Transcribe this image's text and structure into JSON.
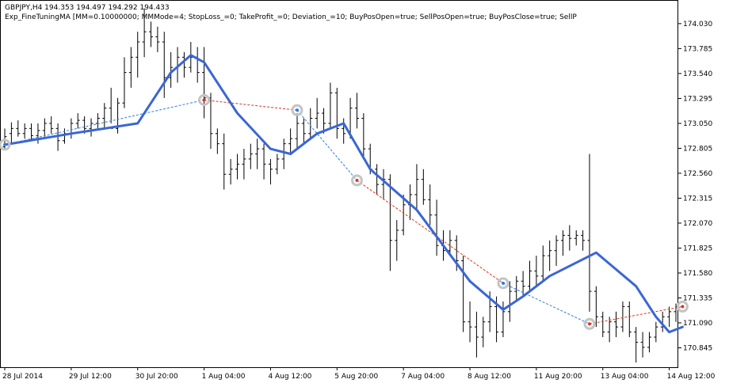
{
  "header": {
    "symbol_line": "GBPJPY,H4  194.353 194.497 194.292 194.433",
    "ea_line": "Exp_FineTuningMA [MM=0.10000000; MMMode=4; StopLoss_=0; TakeProfit_=0; Deviation_=10; BuyPosOpen=true; SellPosOpen=true; BuyPosClose=true; SellP"
  },
  "colors": {
    "background": "#ffffff",
    "bars": "#000000",
    "ma_line": "#3a66d6",
    "buy_trade_line": "#2a7de1",
    "sell_trade_line": "#e0341e",
    "marker_ring": "#c4c4c4"
  },
  "chart_data": {
    "type": "ohlc",
    "yticks": [
      174.03,
      173.785,
      173.54,
      173.295,
      173.05,
      172.805,
      172.56,
      172.315,
      172.07,
      171.825,
      171.58,
      171.335,
      171.09,
      170.845
    ],
    "ylim": [
      170.67,
      174.2
    ],
    "grid": false,
    "xticks": [
      {
        "i": 0,
        "label": "28 Jul 2014"
      },
      {
        "i": 10,
        "label": "29 Jul 12:00"
      },
      {
        "i": 20,
        "label": "30 Jul 20:00"
      },
      {
        "i": 30,
        "label": "1 Aug 04:00"
      },
      {
        "i": 40,
        "label": "4 Aug 12:00"
      },
      {
        "i": 50,
        "label": "5 Aug 20:00"
      },
      {
        "i": 60,
        "label": "7 Aug 04:00"
      },
      {
        "i": 70,
        "label": "8 Aug 12:00"
      },
      {
        "i": 80,
        "label": "11 Aug 20:00"
      },
      {
        "i": 90,
        "label": "13 Aug 04:00"
      },
      {
        "i": 100,
        "label": "14 Aug 12:00"
      }
    ],
    "series": [
      {
        "kind": "ohlc",
        "values": [
          [
            172.82,
            173.0,
            172.8,
            172.92
          ],
          [
            172.95,
            173.06,
            172.85,
            173.0
          ],
          [
            173.0,
            173.08,
            172.92,
            172.95
          ],
          [
            172.95,
            173.05,
            172.9,
            173.0
          ],
          [
            173.0,
            173.05,
            172.88,
            172.93
          ],
          [
            172.93,
            173.05,
            172.85,
            172.98
          ],
          [
            172.98,
            173.1,
            172.92,
            173.05
          ],
          [
            173.05,
            173.12,
            172.95,
            173.0
          ],
          [
            173.0,
            173.05,
            172.78,
            172.88
          ],
          [
            172.88,
            173.0,
            172.85,
            172.95
          ],
          [
            172.95,
            173.1,
            172.9,
            173.05
          ],
          [
            173.05,
            173.15,
            173.0,
            173.08
          ],
          [
            173.08,
            173.12,
            172.95,
            173.0
          ],
          [
            173.0,
            173.1,
            172.92,
            173.05
          ],
          [
            173.05,
            173.15,
            173.0,
            173.1
          ],
          [
            173.1,
            173.25,
            173.0,
            173.2
          ],
          [
            173.2,
            173.4,
            173.05,
            173.0
          ],
          [
            173.0,
            173.3,
            172.95,
            173.25
          ],
          [
            173.25,
            173.7,
            173.2,
            173.55
          ],
          [
            173.55,
            173.8,
            173.4,
            173.7
          ],
          [
            173.7,
            173.95,
            173.5,
            173.85
          ],
          [
            173.85,
            174.18,
            173.7,
            173.95
          ],
          [
            173.95,
            174.05,
            173.8,
            173.9
          ],
          [
            173.9,
            174.0,
            173.75,
            173.85
          ],
          [
            173.85,
            173.95,
            173.3,
            173.5
          ],
          [
            173.5,
            173.75,
            173.4,
            173.6
          ],
          [
            173.6,
            173.8,
            173.45,
            173.7
          ],
          [
            173.7,
            173.75,
            173.5,
            173.6
          ],
          [
            173.6,
            173.85,
            173.55,
            173.7
          ],
          [
            173.7,
            173.8,
            173.45,
            173.55
          ],
          [
            173.55,
            173.8,
            173.1,
            173.3
          ],
          [
            173.3,
            173.35,
            172.8,
            172.95
          ],
          [
            172.95,
            173.0,
            172.75,
            172.85
          ],
          [
            172.85,
            172.95,
            172.4,
            172.55
          ],
          [
            172.55,
            172.7,
            172.45,
            172.6
          ],
          [
            172.6,
            172.75,
            172.5,
            172.65
          ],
          [
            172.65,
            172.8,
            172.5,
            172.7
          ],
          [
            172.7,
            172.85,
            172.6,
            172.75
          ],
          [
            172.75,
            172.9,
            172.6,
            172.8
          ],
          [
            172.8,
            172.85,
            172.5,
            172.65
          ],
          [
            172.65,
            172.7,
            172.45,
            172.6
          ],
          [
            172.6,
            172.75,
            172.55,
            172.7
          ],
          [
            172.7,
            172.9,
            172.6,
            172.85
          ],
          [
            172.85,
            173.0,
            172.75,
            172.9
          ],
          [
            172.9,
            173.15,
            172.8,
            173.05
          ],
          [
            173.05,
            173.1,
            172.85,
            172.95
          ],
          [
            172.95,
            173.2,
            172.9,
            173.1
          ],
          [
            173.1,
            173.3,
            173.0,
            173.15
          ],
          [
            173.15,
            173.2,
            172.95,
            173.05
          ],
          [
            173.05,
            173.45,
            173.0,
            173.35
          ],
          [
            173.35,
            173.4,
            172.9,
            173.0
          ],
          [
            173.0,
            173.1,
            172.85,
            172.95
          ],
          [
            172.95,
            173.3,
            172.9,
            173.2
          ],
          [
            173.2,
            173.35,
            173.0,
            173.1
          ],
          [
            173.1,
            173.15,
            172.7,
            172.8
          ],
          [
            172.8,
            172.85,
            172.55,
            172.6
          ],
          [
            172.6,
            172.65,
            172.35,
            172.45
          ],
          [
            172.45,
            172.6,
            172.3,
            172.5
          ],
          [
            172.5,
            172.55,
            171.6,
            171.9
          ],
          [
            171.9,
            172.1,
            171.7,
            172.0
          ],
          [
            172.0,
            172.35,
            171.95,
            172.25
          ],
          [
            172.25,
            172.45,
            172.1,
            172.35
          ],
          [
            172.35,
            172.65,
            172.2,
            172.5
          ],
          [
            172.5,
            172.6,
            172.25,
            172.3
          ],
          [
            172.3,
            172.45,
            172.05,
            172.15
          ],
          [
            172.15,
            172.3,
            171.75,
            171.85
          ],
          [
            171.85,
            172.0,
            171.7,
            171.8
          ],
          [
            171.8,
            172.0,
            171.75,
            171.9
          ],
          [
            171.9,
            171.95,
            171.6,
            171.7
          ],
          [
            171.7,
            171.75,
            171.0,
            171.1
          ],
          [
            171.1,
            171.3,
            170.9,
            171.05
          ],
          [
            171.05,
            171.2,
            170.75,
            170.95
          ],
          [
            170.95,
            171.15,
            170.85,
            171.1
          ],
          [
            171.1,
            171.4,
            171.0,
            171.25
          ],
          [
            171.25,
            171.35,
            170.9,
            171.0
          ],
          [
            171.0,
            171.3,
            170.95,
            171.2
          ],
          [
            171.2,
            171.5,
            171.1,
            171.4
          ],
          [
            171.4,
            171.55,
            171.3,
            171.5
          ],
          [
            171.5,
            171.6,
            171.35,
            171.45
          ],
          [
            171.45,
            171.7,
            171.4,
            171.6
          ],
          [
            171.6,
            171.75,
            171.45,
            171.55
          ],
          [
            171.55,
            171.85,
            171.5,
            171.75
          ],
          [
            171.75,
            171.9,
            171.6,
            171.8
          ],
          [
            171.8,
            171.95,
            171.65,
            171.9
          ],
          [
            171.9,
            172.0,
            171.75,
            171.95
          ],
          [
            171.95,
            172.05,
            171.8,
            171.92
          ],
          [
            171.92,
            172.0,
            171.85,
            171.95
          ],
          [
            171.95,
            172.0,
            171.8,
            171.9
          ],
          [
            171.9,
            172.75,
            171.2,
            171.4
          ],
          [
            171.4,
            171.45,
            171.05,
            171.15
          ],
          [
            171.15,
            171.2,
            170.95,
            171.0
          ],
          [
            171.0,
            171.15,
            170.9,
            171.1
          ],
          [
            171.1,
            171.2,
            170.95,
            171.05
          ],
          [
            171.05,
            171.3,
            171.0,
            171.25
          ],
          [
            171.25,
            171.3,
            170.95,
            171.0
          ],
          [
            171.0,
            171.05,
            170.7,
            170.9
          ],
          [
            170.9,
            171.0,
            170.75,
            170.85
          ],
          [
            170.85,
            171.0,
            170.8,
            170.95
          ],
          [
            170.95,
            171.1,
            170.9,
            171.05
          ],
          [
            171.05,
            171.2,
            171.0,
            171.15
          ],
          [
            171.15,
            171.25,
            171.05,
            171.2
          ],
          [
            171.2,
            171.28,
            171.1,
            171.25
          ]
        ]
      },
      {
        "kind": "ma",
        "values": [
          [
            0,
            172.84
          ],
          [
            10,
            172.95
          ],
          [
            20,
            173.05
          ],
          [
            25,
            173.55
          ],
          [
            28,
            173.72
          ],
          [
            30,
            173.65
          ],
          [
            35,
            173.15
          ],
          [
            40,
            172.8
          ],
          [
            43,
            172.75
          ],
          [
            47,
            172.95
          ],
          [
            51,
            173.05
          ],
          [
            55,
            172.6
          ],
          [
            62,
            172.2
          ],
          [
            70,
            171.5
          ],
          [
            75,
            171.22
          ],
          [
            78,
            171.35
          ],
          [
            82,
            171.55
          ],
          [
            89,
            171.78
          ],
          [
            95,
            171.45
          ],
          [
            98,
            171.15
          ],
          [
            100,
            171.0
          ],
          [
            102,
            171.05
          ]
        ]
      }
    ],
    "trades": [
      {
        "type": "buy",
        "from": [
          0,
          172.84
        ],
        "to": [
          30,
          173.28
        ]
      },
      {
        "type": "sell",
        "from": [
          30,
          173.28
        ],
        "to": [
          44,
          173.18
        ]
      },
      {
        "type": "buy",
        "from": [
          44,
          173.18
        ],
        "to": [
          53,
          172.49
        ]
      },
      {
        "type": "sell",
        "from": [
          53,
          172.49
        ],
        "to": [
          75,
          171.48
        ]
      },
      {
        "type": "buy",
        "from": [
          75,
          171.48
        ],
        "to": [
          88,
          171.08
        ]
      },
      {
        "type": "sell",
        "from": [
          88,
          171.08
        ],
        "to": [
          102,
          171.25
        ]
      }
    ]
  }
}
